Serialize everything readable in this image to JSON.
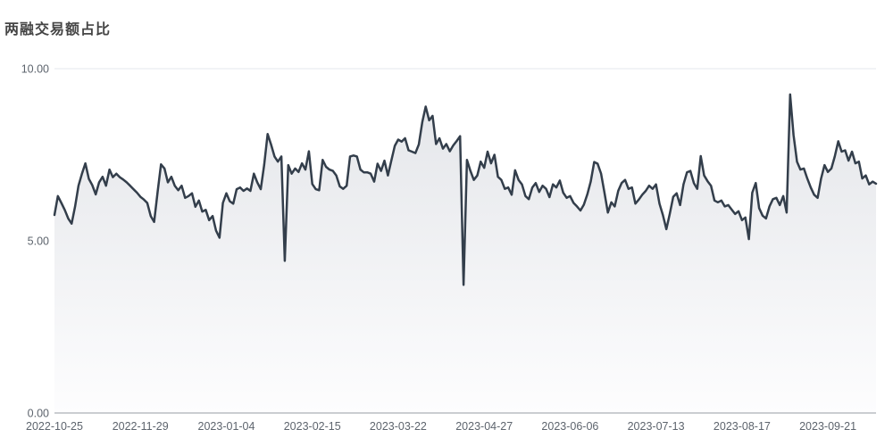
{
  "title": "两融交易额占比",
  "chart_data": {
    "type": "line",
    "title": "两融交易额占比",
    "xlabel": "",
    "ylabel": "",
    "ylim": [
      0,
      10
    ],
    "grid": true,
    "legend": "none",
    "y_tick_labels": [
      "0.00",
      "5.00",
      "10.00"
    ],
    "y_tick_values": [
      0,
      5,
      10
    ],
    "x_tick_labels": [
      "2022-10-25",
      "2022-11-29",
      "2023-01-04",
      "2023-02-15",
      "2023-03-22",
      "2023-04-27",
      "2023-06-06",
      "2023-07-13",
      "2023-08-17",
      "2023-09-21"
    ],
    "x_tick_indices": [
      0,
      25,
      50,
      75,
      100,
      125,
      150,
      175,
      200,
      225
    ],
    "series": [
      {
        "name": "两融交易额占比",
        "values": [
          5.75,
          6.3,
          6.1,
          5.9,
          5.65,
          5.5,
          6.0,
          6.6,
          6.95,
          7.25,
          6.8,
          6.62,
          6.35,
          6.7,
          6.86,
          6.6,
          7.07,
          6.85,
          6.95,
          6.85,
          6.78,
          6.7,
          6.6,
          6.5,
          6.4,
          6.28,
          6.2,
          6.1,
          5.72,
          5.55,
          6.42,
          7.22,
          7.1,
          6.7,
          6.86,
          6.6,
          6.47,
          6.6,
          6.25,
          6.3,
          6.38,
          5.99,
          6.17,
          5.85,
          5.9,
          5.6,
          5.72,
          5.3,
          5.09,
          6.1,
          6.38,
          6.15,
          6.08,
          6.5,
          6.55,
          6.45,
          6.52,
          6.45,
          6.95,
          6.7,
          6.5,
          7.2,
          8.1,
          7.8,
          7.45,
          7.3,
          7.45,
          4.42,
          7.2,
          6.95,
          7.1,
          7.0,
          7.25,
          7.07,
          7.6,
          6.65,
          6.5,
          6.47,
          7.35,
          7.15,
          7.07,
          7.03,
          6.9,
          6.58,
          6.51,
          6.6,
          7.45,
          7.48,
          7.45,
          7.07,
          6.99,
          6.99,
          6.95,
          6.72,
          7.24,
          7.03,
          7.33,
          6.9,
          7.33,
          7.76,
          7.94,
          7.88,
          7.98,
          7.63,
          7.59,
          7.55,
          7.8,
          8.45,
          8.9,
          8.5,
          8.63,
          7.81,
          7.98,
          7.68,
          7.81,
          7.6,
          7.77,
          7.9,
          8.04,
          3.72,
          7.35,
          7.03,
          6.77,
          6.9,
          7.3,
          7.12,
          7.59,
          7.25,
          7.5,
          6.86,
          6.77,
          6.51,
          6.55,
          6.34,
          7.05,
          6.77,
          6.64,
          6.3,
          6.21,
          6.55,
          6.68,
          6.42,
          6.6,
          6.51,
          6.27,
          6.64,
          6.55,
          6.75,
          6.4,
          6.25,
          6.3,
          6.1,
          6.0,
          5.88,
          6.05,
          6.35,
          6.72,
          7.29,
          7.24,
          6.95,
          6.4,
          5.82,
          6.12,
          6.0,
          6.45,
          6.68,
          6.77,
          6.51,
          6.55,
          6.08,
          6.2,
          6.34,
          6.45,
          6.6,
          6.51,
          6.64,
          6.08,
          5.75,
          5.34,
          5.78,
          6.28,
          6.38,
          6.04,
          6.64,
          6.99,
          7.03,
          6.68,
          6.51,
          7.46,
          6.9,
          6.73,
          6.6,
          6.17,
          6.12,
          6.17,
          6.0,
          6.04,
          5.91,
          5.78,
          5.86,
          5.6,
          5.68,
          5.05,
          6.4,
          6.68,
          5.95,
          5.73,
          5.65,
          6.0,
          6.21,
          6.25,
          6.04,
          6.3,
          5.82,
          9.25,
          8.08,
          7.3,
          7.07,
          7.1,
          6.81,
          6.55,
          6.34,
          6.25,
          6.8,
          7.2,
          7.0,
          7.1,
          7.45,
          7.89,
          7.59,
          7.63,
          7.33,
          7.59,
          7.25,
          7.3,
          6.81,
          6.9,
          6.64,
          6.72,
          6.66
        ]
      }
    ],
    "colors": {
      "line": "#333e4b",
      "area_top": "#e2e4e8",
      "area_bottom": "#fdfdfe",
      "grid": "#e3e7ee",
      "axis": "#979ca3",
      "tick_label": "#5d646d",
      "title": "#454545",
      "background": "#ffffff"
    }
  }
}
